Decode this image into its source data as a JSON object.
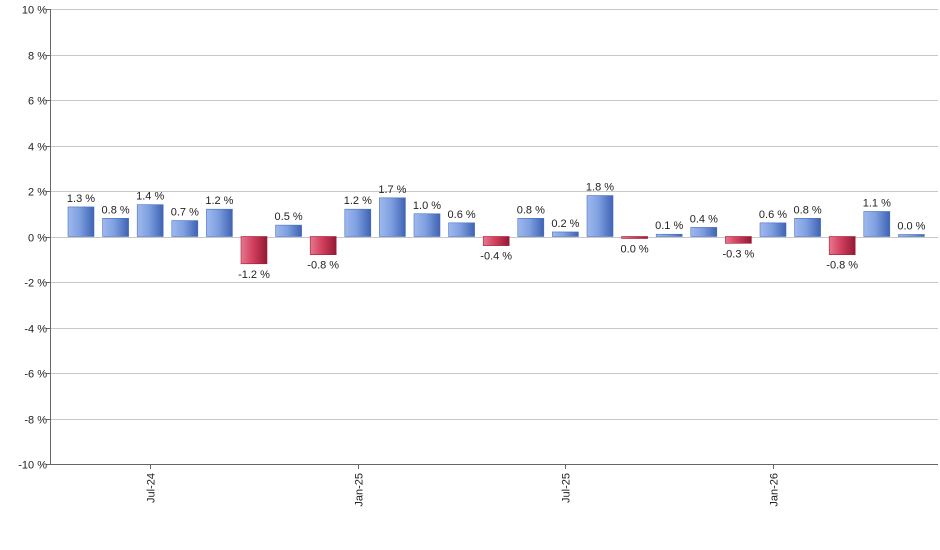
{
  "chart_data": {
    "type": "bar",
    "title": "",
    "xlabel": "",
    "ylabel": "",
    "ylim": [
      -10,
      10
    ],
    "y_ticks": [
      10,
      8,
      6,
      4,
      2,
      0,
      -2,
      -4,
      -6,
      -8,
      -10
    ],
    "y_tick_labels": [
      "10 %",
      "8 %",
      "6 %",
      "4 %",
      "2 %",
      "0 %",
      "-2 %",
      "-4 %",
      "-6 %",
      "-8 %",
      "-10 %"
    ],
    "grid": true,
    "legend": "none",
    "values": [
      1.3,
      0.8,
      1.4,
      0.7,
      1.2,
      -1.2,
      0.5,
      -0.8,
      1.2,
      1.7,
      1.0,
      0.6,
      -0.4,
      0.8,
      0.2,
      1.8,
      -0.05,
      0.1,
      0.4,
      -0.3,
      0.6,
      0.8,
      -0.8,
      1.1,
      0.05
    ],
    "value_labels": [
      "1.3 %",
      "0.8 %",
      "1.4 %",
      "0.7 %",
      "1.2 %",
      "-1.2 %",
      "0.5 %",
      "-0.8 %",
      "1.2 %",
      "1.7 %",
      "1.0 %",
      "0.6 %",
      "-0.4 %",
      "0.8 %",
      "0.2 %",
      "1.8 %",
      "0.0 %",
      "0.1 %",
      "0.4 %",
      "-0.3 %",
      "0.6 %",
      "0.8 %",
      "-0.8 %",
      "1.1 %",
      "0.0 %"
    ],
    "x_tick_labels": [
      {
        "bar_index": 2,
        "label": "Jul-24"
      },
      {
        "bar_index": 8,
        "label": "Jan-25"
      },
      {
        "bar_index": 14,
        "label": "Jul-25"
      },
      {
        "bar_index": 20,
        "label": "Jan-26"
      }
    ],
    "colors": {
      "positive": "#7e9fe0",
      "positive_dark": "#4a6fbf",
      "negative": "#d2405e",
      "negative_dark": "#9e1e3a",
      "grid": "#c8c8c8",
      "axis": "#666666",
      "text": "#222222"
    }
  }
}
